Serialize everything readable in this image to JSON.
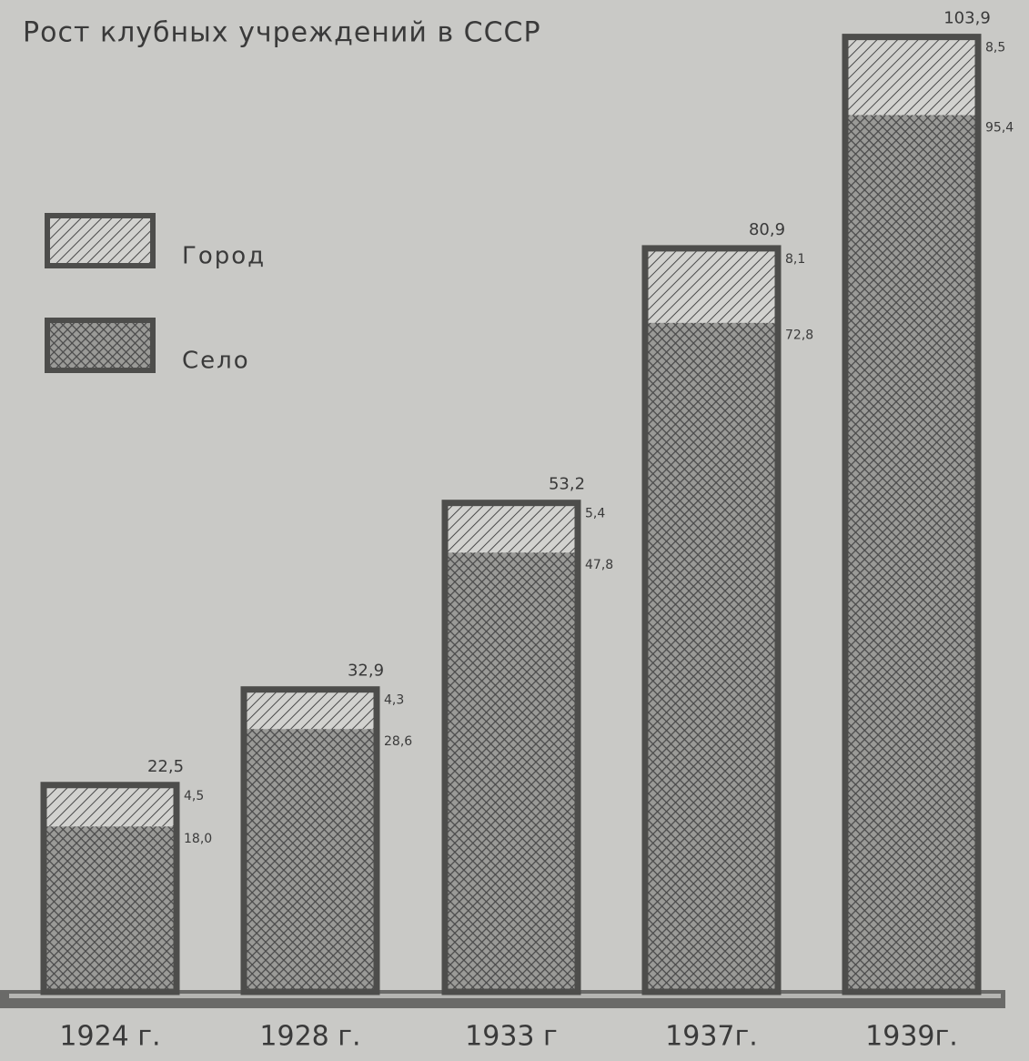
{
  "chart_data": {
    "type": "stacked_bar",
    "title": "Рост клубных учреждений в СССР",
    "categories": [
      "1924 г.",
      "1928 г.",
      "1933 г",
      "1937г.",
      "1939г."
    ],
    "series": [
      {
        "name": "Село",
        "color": "#4a4a4a",
        "pattern": "crosshatch",
        "values": [
          18.0,
          28.6,
          47.8,
          72.8,
          95.4
        ],
        "value_labels": [
          "18,0",
          "28,6",
          "47,8",
          "72,8",
          "95,4"
        ]
      },
      {
        "name": "Город",
        "color": "#4a4a4a",
        "pattern": "diagonal",
        "values": [
          4.5,
          4.3,
          5.4,
          8.1,
          8.5
        ],
        "value_labels": [
          "4,5",
          "4,3",
          "5,4",
          "8,1",
          "8,5"
        ]
      }
    ],
    "totals": [
      22.5,
      32.9,
      53.2,
      80.9,
      103.9
    ],
    "total_labels": [
      "22,5",
      "32,9",
      "53,2",
      "80,9",
      "103,9"
    ]
  }
}
